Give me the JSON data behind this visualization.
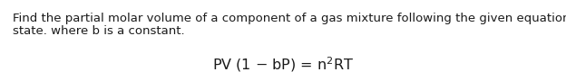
{
  "line1": "Find the partial molar volume of a component of a gas mixture following the given equation of",
  "line2": "state. where b is a constant.",
  "bg_color": "#ffffff",
  "text_color": "#1a1a1a",
  "fontsize_body": 9.5,
  "fontsize_eq": 11.5,
  "fig_width": 6.24,
  "fig_height": 0.9
}
